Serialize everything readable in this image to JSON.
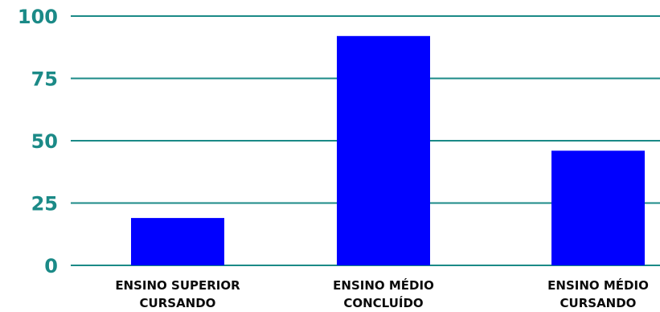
{
  "chart_data": {
    "type": "bar",
    "title": "",
    "xlabel": "",
    "ylabel": "",
    "ylim": [
      0,
      100
    ],
    "yticks": [
      "0",
      "25",
      "50",
      "75",
      "100"
    ],
    "categories": [
      [
        "ENSINO SUPERIOR",
        "CURSANDO"
      ],
      [
        "ENSINO MÉDIO",
        "CONCLUÍDO"
      ],
      [
        "ENSINO MÉDIO",
        "CURSANDO"
      ]
    ],
    "values": [
      19,
      92,
      46
    ],
    "grid": true,
    "legend": "none",
    "colors": {
      "bar": "#0000ff",
      "grid": "#1b8a87",
      "tick_label": "#1b8a87",
      "category_label": "#0a0a0a"
    }
  }
}
